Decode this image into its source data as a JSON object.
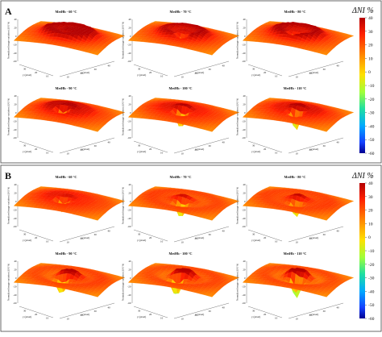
{
  "chart_data": [
    {
      "type": "surface",
      "panel_label": "A",
      "colorbar": {
        "title": "ΔNI %",
        "ticks": [
          40,
          30,
          20,
          10,
          0,
          -10,
          -20,
          -30,
          -40,
          -50,
          -60
        ],
        "range": [
          -60,
          40
        ]
      },
      "z_ticks": [
        "40",
        "20",
        "0",
        "-20",
        "-40",
        "-60"
      ],
      "ylabel": "Normalized image variation (ΔNI %)",
      "subplots": [
        {
          "title": "MetHb - 60 °C",
          "xlabel": "x (pixel)",
          "ylabel": "y (pixel)",
          "peak": 22,
          "dip": -8,
          "ring": 24
        },
        {
          "title": "MetHb - 70 °C",
          "xlabel": "x (pixel)",
          "ylabel": "y (pixel)",
          "peak": 8,
          "dip": -35,
          "ring": 15
        },
        {
          "title": "MetHb - 80 °C",
          "xlabel": "x (pixel)",
          "ylabel": "y (pixel)",
          "peak": 5,
          "dip": -28,
          "ring": 18
        },
        {
          "title": "MetHb - 90 °C",
          "xlabel": "x (pixel)",
          "ylabel": "y (pixel)",
          "peak": 30,
          "dip": -45,
          "ring": 10
        },
        {
          "title": "MetHb - 100 °C",
          "xlabel": "x (pixel)",
          "ylabel": "y (pixel)",
          "peak": 28,
          "dip": -52,
          "ring": 6
        },
        {
          "title": "MetHb - 110 °C",
          "xlabel": "x (pixel)",
          "ylabel": "y (pixel)",
          "peak": 32,
          "dip": -55,
          "ring": 8
        }
      ]
    },
    {
      "type": "surface",
      "panel_label": "B",
      "colorbar": {
        "title": "ΔNI %",
        "ticks": [
          40,
          30,
          20,
          10,
          0,
          -10,
          -20,
          -30,
          -40,
          -50,
          -60
        ],
        "range": [
          -60,
          40
        ]
      },
      "z_ticks": [
        "40",
        "20",
        "0",
        "-20",
        "-40",
        "-60"
      ],
      "ylabel": "Normalized image variation (ΔNI %)",
      "subplots": [
        {
          "title": "MetHb - 60 °C",
          "xlabel": "x (pixel)",
          "ylabel": "y (pixel)",
          "peak": 10,
          "dip": -40,
          "ring": 4
        },
        {
          "title": "MetHb - 70 °C",
          "xlabel": "x (pixel)",
          "ylabel": "y (pixel)",
          "peak": 15,
          "dip": -45,
          "ring": -4
        },
        {
          "title": "MetHb - 80 °C",
          "xlabel": "x (pixel)",
          "ylabel": "y (pixel)",
          "peak": 18,
          "dip": -40,
          "ring": -2
        },
        {
          "title": "MetHb - 90 °C",
          "xlabel": "x (pixel)",
          "ylabel": "y (pixel)",
          "peak": 30,
          "dip": -42,
          "ring": -6
        },
        {
          "title": "MetHb - 100 °C",
          "xlabel": "x (pixel)",
          "ylabel": "y (pixel)",
          "peak": 32,
          "dip": -48,
          "ring": -8
        },
        {
          "title": "MetHb - 110 °C",
          "xlabel": "x (pixel)",
          "ylabel": "y (pixel)",
          "peak": 34,
          "dip": -52,
          "ring": -10
        }
      ]
    }
  ]
}
